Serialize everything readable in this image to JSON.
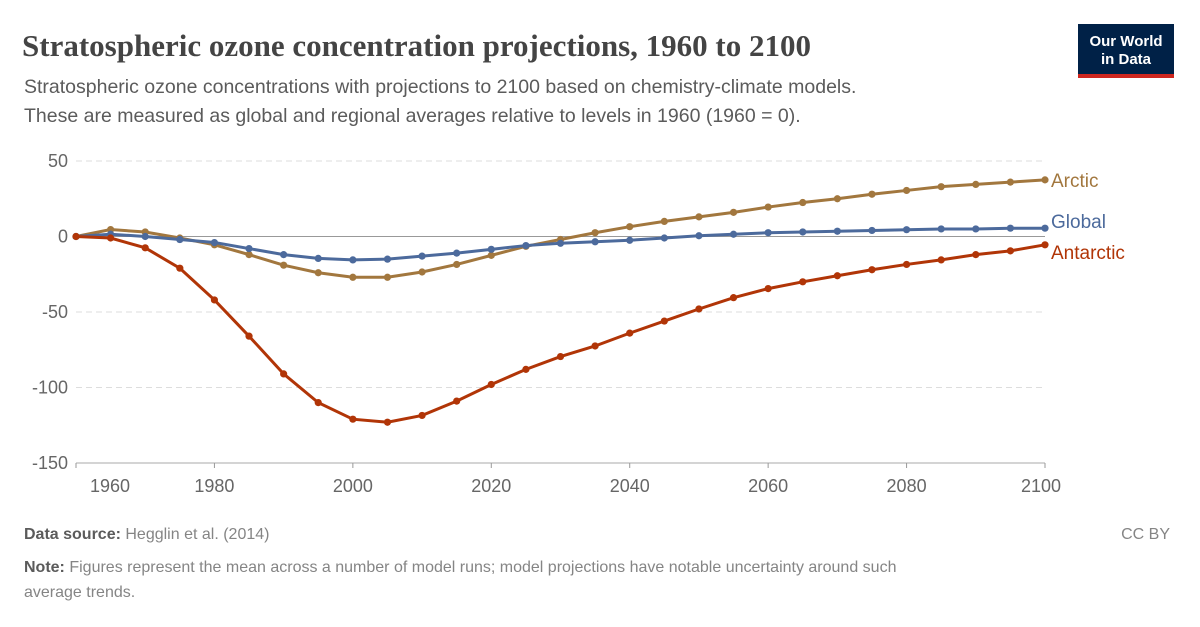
{
  "chart_data": {
    "type": "line",
    "title": "Stratospheric ozone concentration projections, 1960 to 2100",
    "subtitle": [
      "Stratospheric ozone concentrations with projections to 2100 based on chemistry-climate models.",
      "These are measured as global and regional averages relative to levels in 1960 (1960 = 0)."
    ],
    "x": [
      1960,
      1965,
      1970,
      1975,
      1980,
      1985,
      1990,
      1995,
      2000,
      2005,
      2010,
      2015,
      2020,
      2025,
      2030,
      2035,
      2040,
      2045,
      2050,
      2055,
      2060,
      2065,
      2070,
      2075,
      2080,
      2085,
      2090,
      2095,
      2100
    ],
    "series": [
      {
        "name": "Arctic",
        "color": "#a2773e",
        "values": [
          0,
          4.6,
          3,
          -1,
          -5.5,
          -12,
          -19,
          -24,
          -27,
          -27,
          -23.5,
          -18.5,
          -12.5,
          -6.5,
          -2,
          2.5,
          6.5,
          10,
          13,
          16,
          19.5,
          22.5,
          25,
          28,
          30.5,
          33,
          34.5,
          36,
          37.5
        ]
      },
      {
        "name": "Global",
        "color": "#4c6a9c",
        "values": [
          0,
          1.5,
          0,
          -2,
          -4,
          -8,
          -12,
          -14.5,
          -15.5,
          -15,
          -13,
          -11,
          -8.5,
          -6,
          -4.5,
          -3.5,
          -2.5,
          -1,
          0.5,
          1.5,
          2.5,
          3,
          3.5,
          4,
          4.5,
          5,
          5,
          5.5,
          5.5
        ]
      },
      {
        "name": "Antarctic",
        "color": "#b13507",
        "values": [
          0,
          -1,
          -7.5,
          -21,
          -42,
          -66,
          -91,
          -110,
          -121,
          -123,
          -118.5,
          -109,
          -98,
          -88,
          -79.5,
          -72.5,
          -64,
          -56,
          -48,
          -40.5,
          -34.5,
          -30,
          -26,
          -22,
          -18.5,
          -15.5,
          -12,
          -9.5,
          -5.5
        ]
      }
    ],
    "xlim": [
      1960,
      2100
    ],
    "xticks": [
      1960,
      1980,
      2000,
      2020,
      2040,
      2060,
      2080,
      2100
    ],
    "ylim": [
      -150,
      50
    ],
    "yticks": [
      -150,
      -100,
      -50,
      0,
      50
    ],
    "grid": true,
    "source_label": "Data source:",
    "source": "Hegglin et al. (2014)",
    "license": "CC BY",
    "note_label": "Note:",
    "note": [
      "Figures represent the mean across a number of model runs; model projections have notable uncertainty around such",
      "average trends."
    ]
  },
  "logo": [
    "Our World",
    "in Data"
  ]
}
